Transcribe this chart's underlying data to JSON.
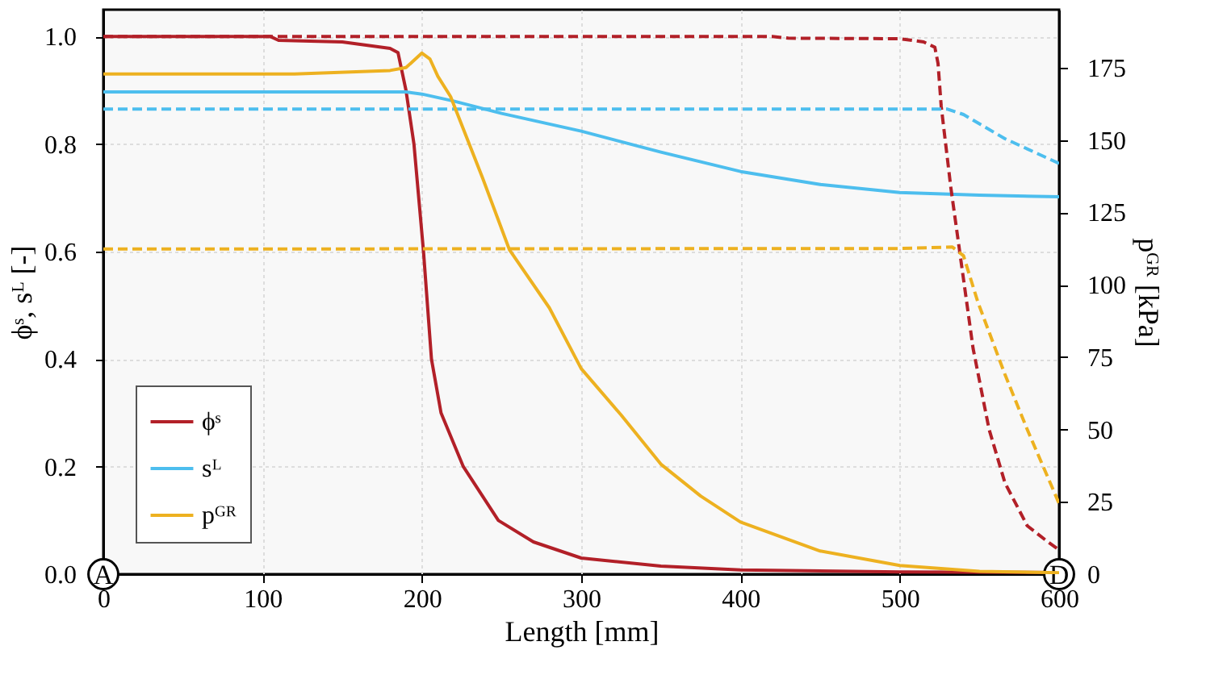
{
  "chart_data": {
    "type": "line",
    "xlabel": "Length [mm]",
    "ylabel": "ϕˢ, sᴸ [-]",
    "y2label": "pᴳᴿ [kPa]",
    "xlim": [
      0,
      600
    ],
    "xticks": [
      0,
      100,
      200,
      300,
      400,
      500,
      600
    ],
    "ylim": [
      0,
      1.05
    ],
    "yticks": [
      {
        "value": 0,
        "label": "0.0"
      },
      {
        "value": 0.2,
        "label": "0.2"
      },
      {
        "value": 0.4,
        "label": "0.4"
      },
      {
        "value": 0.6,
        "label": "0.6"
      },
      {
        "value": 0.8,
        "label": "0.8"
      },
      {
        "value": 1.0,
        "label": "1.0"
      }
    ],
    "y2lim": [
      0,
      195
    ],
    "y2ticks": [
      0,
      25,
      50,
      75,
      100,
      125,
      150,
      175
    ],
    "grid": true,
    "legend": "bottom left",
    "line_style": "solid",
    "marker": "none",
    "annotations": [
      {
        "text": "A",
        "x": 0,
        "y": 0
      },
      {
        "text": "D",
        "x": 600,
        "y": 0
      }
    ],
    "series": [
      {
        "name": "ϕˢ",
        "color": "#b22028",
        "x": [
          0,
          105,
          110,
          150,
          180,
          185,
          190,
          195,
          201,
          206,
          212,
          226,
          248,
          270,
          300,
          350,
          400,
          500,
          600
        ],
        "values": [
          1.0,
          1.0,
          0.993,
          0.99,
          0.978,
          0.97,
          0.9,
          0.8,
          0.6,
          0.4,
          0.3,
          0.2,
          0.1,
          0.06,
          0.03,
          0.015,
          0.008,
          0.004,
          0.003
        ]
      },
      {
        "name": "sᴸ",
        "color": "#4dbeee",
        "x": [
          0,
          190,
          200,
          220,
          250,
          300,
          350,
          400,
          450,
          500,
          550,
          600
        ],
        "values": [
          0.897,
          0.897,
          0.893,
          0.88,
          0.857,
          0.824,
          0.785,
          0.749,
          0.725,
          0.71,
          0.705,
          0.702
        ]
      },
      {
        "name": "pᴳᴿ",
        "color": "#edb120",
        "axis": "y2",
        "x": [
          0,
          120,
          180,
          190,
          200,
          205,
          210,
          218,
          238,
          255,
          280,
          300,
          325,
          350,
          375,
          400,
          450,
          500,
          550,
          600
        ],
        "values": [
          172.8,
          172.8,
          174,
          175,
          180,
          178,
          172,
          165,
          137,
          112,
          92,
          71,
          55,
          38,
          27,
          18,
          8,
          3,
          1,
          0.5
        ]
      },
      {
        "color": "#b22028",
        "line_style": "dashed",
        "x": [
          0,
          420,
          430,
          500,
          515,
          522,
          524,
          526,
          532,
          539,
          546,
          556,
          566,
          580,
          593,
          600
        ],
        "values": [
          1.0,
          1.0,
          0.997,
          0.996,
          0.99,
          0.98,
          0.95,
          0.87,
          0.72,
          0.57,
          0.42,
          0.27,
          0.17,
          0.09,
          0.06,
          0.045
        ]
      },
      {
        "color": "#4dbeee",
        "line_style": "dashed",
        "x": [
          0,
          530,
          540,
          566,
          600
        ],
        "values": [
          0.865,
          0.865,
          0.855,
          0.81,
          0.764
        ]
      },
      {
        "color": "#edb120",
        "line_style": "dashed",
        "axis": "y2",
        "x": [
          0,
          500,
          533,
          540,
          549,
          566,
          580,
          600
        ],
        "values": [
          112.3,
          112.5,
          113,
          110,
          94,
          69,
          50,
          24.4
        ]
      }
    ]
  }
}
